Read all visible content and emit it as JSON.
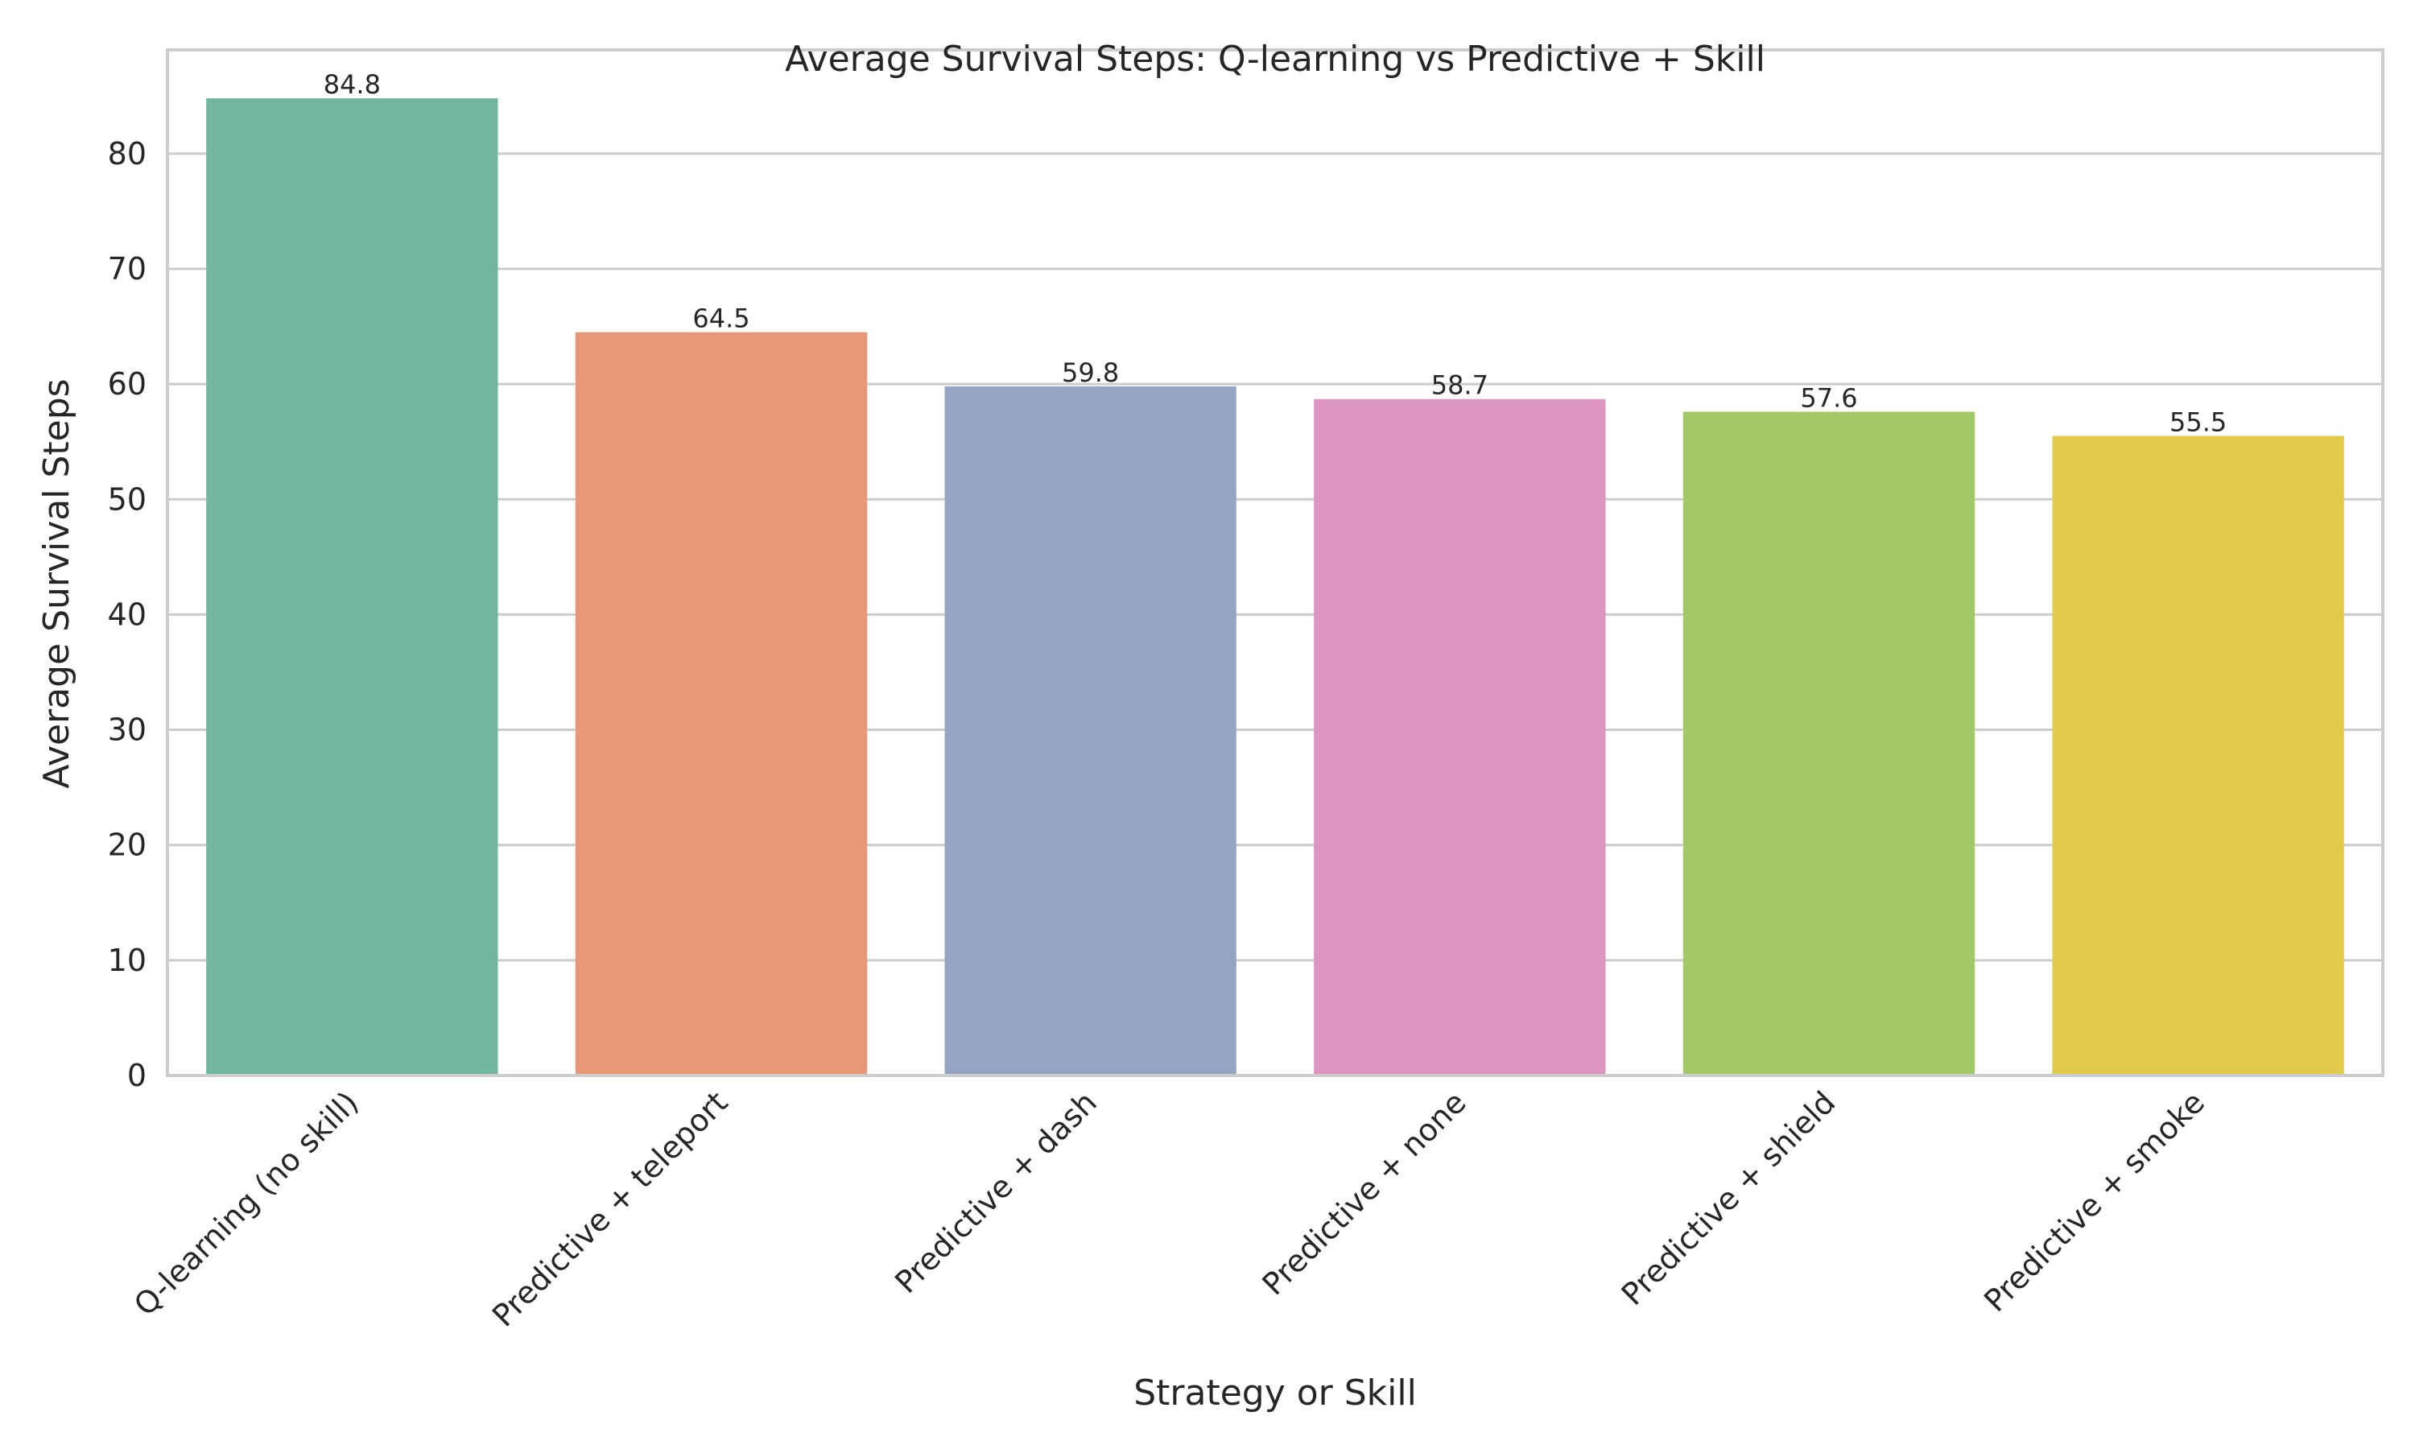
{
  "chart_data": {
    "type": "bar",
    "title": "Average Survival Steps: Q-learning vs Predictive + Skill",
    "xlabel": "Strategy or Skill",
    "ylabel": "Average Survival Steps",
    "categories": [
      "Q-learning (no skill)",
      "Predictive + teleport",
      "Predictive + dash",
      "Predictive + none",
      "Predictive + shield",
      "Predictive + smoke"
    ],
    "values": [
      84.8,
      64.5,
      59.8,
      58.7,
      57.6,
      55.5
    ],
    "value_labels": [
      "84.8",
      "64.5",
      "59.8",
      "58.7",
      "57.6",
      "55.5"
    ],
    "colors": [
      "#73b69f",
      "#e99876",
      "#96a4c3",
      "#dc95c0",
      "#a3c866",
      "#e2cb4b"
    ],
    "ylim": [
      0,
      89
    ],
    "yticks": [
      0,
      10,
      20,
      30,
      40,
      50,
      60,
      70,
      80
    ],
    "ytick_labels": [
      "0",
      "10",
      "20",
      "30",
      "40",
      "50",
      "60",
      "70",
      "80"
    ],
    "grid": true,
    "legend": "none"
  }
}
